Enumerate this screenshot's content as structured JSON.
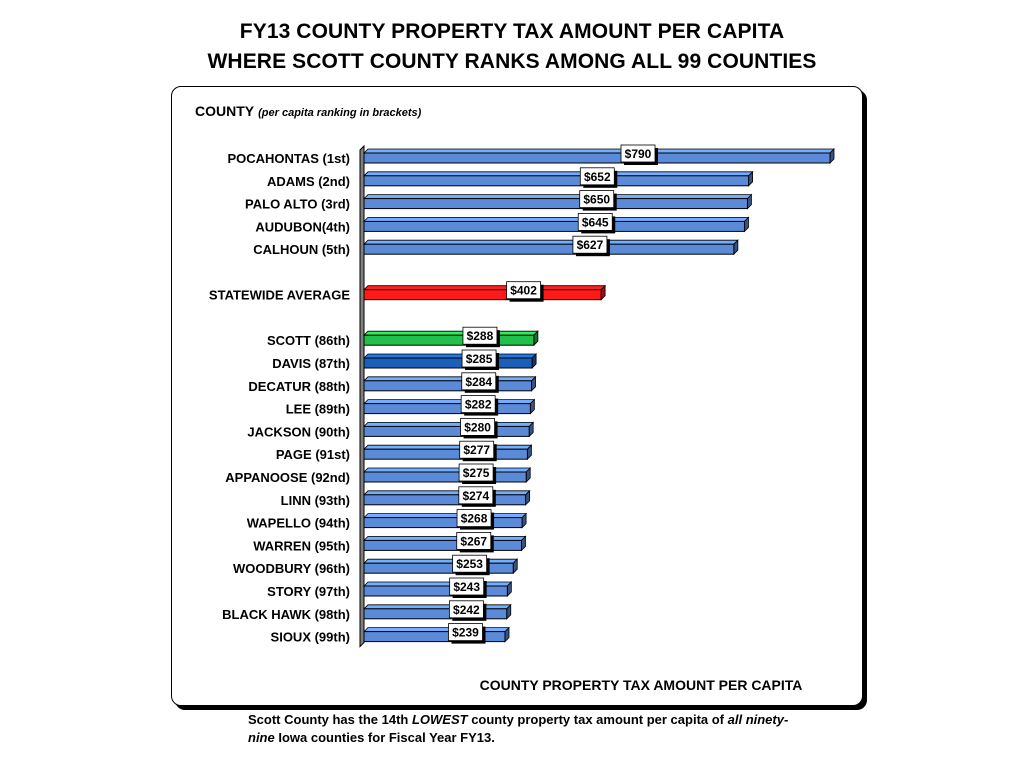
{
  "title_line1": "FY13 COUNTY PROPERTY TAX AMOUNT PER CAPITA",
  "title_line2": "WHERE SCOTT COUNTY RANKS AMONG ALL 99 COUNTIES",
  "header_label": "COUNTY",
  "header_note": "(per capita ranking in brackets)",
  "footer": {
    "part1": "Scott County has the 14th ",
    "emph1": "LOWEST",
    "part2": " county property tax amount per capita of ",
    "emph2": "all ninety-nine",
    "part3": " Iowa counties for Fiscal Year FY13."
  },
  "colors": {
    "default": "#5b8bd8",
    "average": "#ff1a1a",
    "scott": "#22c04a",
    "davis": "#1a5fb8"
  },
  "chart_data": {
    "type": "bar",
    "orientation": "horizontal",
    "xlabel": "COUNTY PROPERTY TAX AMOUNT PER CAPITA",
    "ylabel": "COUNTY",
    "xlim": [
      0,
      800
    ],
    "grid": false,
    "legend": "none",
    "bars": [
      {
        "category": "POCAHONTAS (1st)",
        "value": 790,
        "label": "$790",
        "color": "default"
      },
      {
        "category": "ADAMS (2nd)",
        "value": 652,
        "label": "$652",
        "color": "default"
      },
      {
        "category": "PALO ALTO (3rd)",
        "value": 650,
        "label": "$650",
        "color": "default"
      },
      {
        "category": "AUDUBON(4th)",
        "value": 645,
        "label": "$645",
        "color": "default"
      },
      {
        "category": "CALHOUN (5th)",
        "value": 627,
        "label": "$627",
        "color": "default"
      },
      {
        "category": "STATEWIDE AVERAGE",
        "value": 402,
        "label": "$402",
        "color": "average",
        "gap_before": true
      },
      {
        "category": "SCOTT (86th)",
        "value": 288,
        "label": "$288",
        "color": "scott",
        "gap_before": true
      },
      {
        "category": "DAVIS (87th)",
        "value": 285,
        "label": "$285",
        "color": "davis"
      },
      {
        "category": "DECATUR (88th)",
        "value": 284,
        "label": "$284",
        "color": "default"
      },
      {
        "category": "LEE (89th)",
        "value": 282,
        "label": "$282",
        "color": "default"
      },
      {
        "category": "JACKSON (90th)",
        "value": 280,
        "label": "$280",
        "color": "default"
      },
      {
        "category": "PAGE (91st)",
        "value": 277,
        "label": "$277",
        "color": "default"
      },
      {
        "category": "APPANOOSE (92nd)",
        "value": 275,
        "label": "$275",
        "color": "default"
      },
      {
        "category": "LINN (93th)",
        "value": 274,
        "label": "$274",
        "color": "default"
      },
      {
        "category": "WAPELLO (94th)",
        "value": 268,
        "label": "$268",
        "color": "default"
      },
      {
        "category": "WARREN (95th)",
        "value": 267,
        "label": "$267",
        "color": "default"
      },
      {
        "category": "WOODBURY (96th)",
        "value": 253,
        "label": "$253",
        "color": "default"
      },
      {
        "category": "STORY (97th)",
        "value": 243,
        "label": "$243",
        "color": "default"
      },
      {
        "category": "BLACK HAWK (98th)",
        "value": 242,
        "label": "$242",
        "color": "default"
      },
      {
        "category": "SIOUX (99th)",
        "value": 239,
        "label": "$239",
        "color": "default"
      }
    ]
  }
}
